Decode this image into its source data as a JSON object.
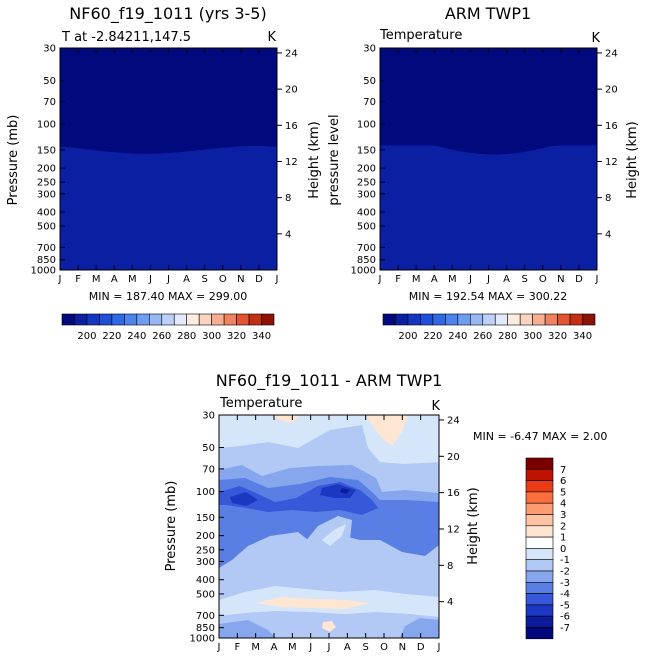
{
  "chart_data": [
    {
      "type": "heatmap",
      "title": "NF60_f19_1011 (yrs 3-5)",
      "subtitle": "T at -2.84211,147.5",
      "units": "K",
      "ylabel": "Pressure (mb)",
      "right_ylabel": "Height (km)",
      "x_ticks": [
        "J",
        "F",
        "M",
        "A",
        "M",
        "J",
        "J",
        "A",
        "S",
        "O",
        "N",
        "D",
        "J"
      ],
      "y_ticks": [
        "30",
        "50",
        "70",
        "100",
        "150",
        "200",
        "250",
        "300",
        "400",
        "500",
        "700",
        "850",
        "1000"
      ],
      "right_ticks": [
        "24",
        "20",
        "16",
        "12",
        "8",
        "4"
      ],
      "min_max": "MIN = 187.40 MAX = 299.00",
      "colorbar_labels": [
        "200",
        "220",
        "240",
        "260",
        "280",
        "300",
        "320",
        "340"
      ],
      "colorbar_levels": [
        190,
        200,
        210,
        220,
        230,
        240,
        250,
        260,
        270,
        280,
        290,
        300,
        310,
        320,
        330,
        340,
        350
      ],
      "colors": [
        "#000a7d",
        "#0a1fa1",
        "#1437c3",
        "#1f4fd9",
        "#2f67e5",
        "#4c84ee",
        "#6e9ef2",
        "#97b8f5",
        "#bdd0f7",
        "#e2ebfb",
        "#ffece0",
        "#fcd3bf",
        "#f7ae91",
        "#f0835f",
        "#e0542f",
        "#c42f12",
        "#8c1004"
      ],
      "bands": [
        {
          "level": "190-200",
          "p_bottom": 150
        },
        {
          "level": "200-210",
          "p_bottom": 180
        },
        {
          "level": "210-220",
          "p_bottom": 210
        },
        {
          "level": "220-230",
          "p_bottom": 245
        },
        {
          "level": "230-240",
          "p_bottom": 285
        },
        {
          "level": "240-250",
          "p_bottom": 340
        },
        {
          "level": "250-260",
          "p_bottom": 400
        },
        {
          "level": "260-270",
          "p_bottom": 470
        },
        {
          "level": "270-280",
          "p_bottom": 560
        },
        {
          "level": "280-290",
          "p_bottom": 720
        },
        {
          "level": "290-300",
          "p_bottom": 1000
        }
      ]
    },
    {
      "type": "heatmap",
      "title": "ARM TWP1",
      "subtitle": "Temperature",
      "units": "K",
      "ylabel": "pressure level",
      "right_ylabel": "Height (km)",
      "x_ticks": [
        "J",
        "F",
        "M",
        "A",
        "M",
        "J",
        "J",
        "A",
        "S",
        "O",
        "N",
        "D",
        "J"
      ],
      "y_ticks": [
        "30",
        "50",
        "70",
        "100",
        "150",
        "200",
        "250",
        "300",
        "400",
        "500",
        "700",
        "850",
        "1000"
      ],
      "right_ticks": [
        "24",
        "20",
        "16",
        "12",
        "8",
        "4"
      ],
      "min_max": "MIN = 192.54 MAX = 300.22",
      "colorbar_labels": [
        "200",
        "220",
        "240",
        "260",
        "280",
        "300",
        "320",
        "340"
      ],
      "colorbar_levels": [
        190,
        200,
        210,
        220,
        230,
        240,
        250,
        260,
        270,
        280,
        290,
        300,
        310,
        320,
        330,
        340,
        350
      ],
      "colors": [
        "#000a7d",
        "#0a1fa1",
        "#1437c3",
        "#1f4fd9",
        "#2f67e5",
        "#4c84ee",
        "#6e9ef2",
        "#97b8f5",
        "#bdd0f7",
        "#e2ebfb",
        "#ffece0",
        "#fcd3bf",
        "#f7ae91",
        "#f0835f",
        "#e0542f",
        "#c42f12",
        "#8c1004"
      ],
      "bands": [
        {
          "level": "190-200",
          "p_bottom": 140
        },
        {
          "level": "200-210",
          "p_bottom": 175
        },
        {
          "level": "210-220",
          "p_bottom": 205
        },
        {
          "level": "220-230",
          "p_bottom": 240
        },
        {
          "level": "230-240",
          "p_bottom": 280
        },
        {
          "level": "240-250",
          "p_bottom": 335
        },
        {
          "level": "250-260",
          "p_bottom": 400
        },
        {
          "level": "260-270",
          "p_bottom": 470
        },
        {
          "level": "270-280",
          "p_bottom": 560
        },
        {
          "level": "280-290",
          "p_bottom": 740
        },
        {
          "level": "290-300",
          "p_bottom": 1000
        }
      ]
    },
    {
      "type": "heatmap",
      "title": "NF60_f19_1011 - ARM TWP1",
      "subtitle": "Temperature",
      "units": "K",
      "ylabel": "Pressure (mb)",
      "right_ylabel": "Height (km)",
      "x_ticks": [
        "J",
        "F",
        "M",
        "A",
        "M",
        "J",
        "J",
        "A",
        "S",
        "O",
        "N",
        "D",
        "J"
      ],
      "y_ticks": [
        "30",
        "50",
        "70",
        "100",
        "150",
        "200",
        "250",
        "300",
        "400",
        "500",
        "700",
        "850",
        "1000"
      ],
      "right_ticks": [
        "24",
        "20",
        "16",
        "12",
        "8",
        "4"
      ],
      "min_max": "MIN = -6.47 MAX = 2.00",
      "colorbar_labels": [
        "7",
        "6",
        "5",
        "4",
        "3",
        "2",
        "1",
        "0",
        "-1",
        "-2",
        "-3",
        "-4",
        "-5",
        "-6",
        "-7"
      ],
      "colors": [
        "#7a0000",
        "#bd1300",
        "#eb3b16",
        "#fb6f3d",
        "#fd9c72",
        "#fdc3a2",
        "#ffe6d2",
        "#ffffff",
        "#d5e6fb",
        "#b3c9f5",
        "#86a6ee",
        "#5a7fe4",
        "#3759d9",
        "#1c38c2",
        "#0b1b9c",
        "#00087a"
      ],
      "dominant_level": "-2 to -1",
      "warm_spots": [
        "30 mb Oct-Nov: 0 to 1",
        "500 mb Mar-Jul: 0 to 1",
        "950 mb Jul: 0 to 1"
      ],
      "cold_spots": [
        "100 mb Feb and Jul-Aug: -6 to -5",
        "150-300 mb: -4 to -3"
      ]
    }
  ]
}
